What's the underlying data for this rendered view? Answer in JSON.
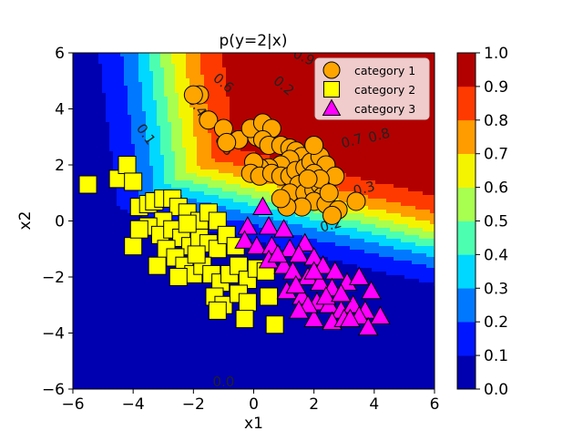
{
  "chart_data": {
    "type": "contour+scatter",
    "title": "p(y=2|x)",
    "xlabel": "x1",
    "ylabel": "x2",
    "xlim": [
      -6,
      6
    ],
    "ylim": [
      -6,
      6
    ],
    "xticks": [
      "−6",
      "−4",
      "−2",
      "0",
      "2",
      "4",
      "6"
    ],
    "yticks": [
      "−6",
      "−4",
      "−2",
      "0",
      "2",
      "4",
      "6"
    ],
    "colorbar": {
      "min": 0.0,
      "max": 1.0,
      "ticks": [
        "0.0",
        "0.1",
        "0.2",
        "0.3",
        "0.4",
        "0.5",
        "0.6",
        "0.7",
        "0.8",
        "0.9",
        "1.0"
      ],
      "level_colors": [
        "#0000b0",
        "#0016ff",
        "#0078ff",
        "#00d8ff",
        "#4cffb0",
        "#a8ff50",
        "#f4f400",
        "#ff9c00",
        "#ff3a00",
        "#b20000"
      ]
    },
    "contour_labels": [
      {
        "text": "0.1",
        "x": -3.7,
        "y": 3.0,
        "rotation": 55
      },
      {
        "text": "0.4",
        "x": -2.0,
        "y": 4.0,
        "rotation": 55
      },
      {
        "text": "0.5",
        "x": -1.1,
        "y": 2.6,
        "rotation": 55
      },
      {
        "text": "0.6",
        "x": -1.1,
        "y": 4.8,
        "rotation": 40
      },
      {
        "text": "0.2",
        "x": 0.9,
        "y": 4.7,
        "rotation": 40
      },
      {
        "text": "0.9",
        "x": 1.6,
        "y": 5.7,
        "rotation": 25
      },
      {
        "text": "0.7",
        "x": 3.3,
        "y": 2.7,
        "rotation": -15
      },
      {
        "text": "0.8",
        "x": 4.2,
        "y": 2.9,
        "rotation": -15
      },
      {
        "text": "0.3",
        "x": 3.7,
        "y": 1.0,
        "rotation": -15
      },
      {
        "text": "0.2",
        "x": 2.6,
        "y": -0.3,
        "rotation": -15
      },
      {
        "text": "0.0",
        "x": -1.0,
        "y": -5.9,
        "rotation": 0
      }
    ],
    "legend": {
      "placement": "top-right",
      "entries": [
        "category 1",
        "category 2",
        "category 3"
      ]
    },
    "series": [
      {
        "name": "category 1",
        "marker": "circle",
        "color": "#ffa500",
        "points": [
          [
            -1.8,
            4.5
          ],
          [
            -2.0,
            4.5
          ],
          [
            -1.5,
            3.6
          ],
          [
            -1.0,
            3.3
          ],
          [
            -0.5,
            2.9
          ],
          [
            -0.9,
            2.8
          ],
          [
            0.1,
            3.0
          ],
          [
            -0.1,
            3.3
          ],
          [
            0.3,
            3.5
          ],
          [
            0.6,
            3.3
          ],
          [
            0.3,
            2.9
          ],
          [
            0.5,
            2.7
          ],
          [
            0.9,
            2.7
          ],
          [
            1.2,
            2.6
          ],
          [
            1.4,
            2.5
          ],
          [
            1.6,
            2.3
          ],
          [
            1.2,
            2.2
          ],
          [
            0.9,
            2.0
          ],
          [
            0.5,
            1.9
          ],
          [
            0.2,
            1.9
          ],
          [
            0.0,
            2.1
          ],
          [
            -0.1,
            1.7
          ],
          [
            0.2,
            1.6
          ],
          [
            0.6,
            1.7
          ],
          [
            0.9,
            1.6
          ],
          [
            1.2,
            1.6
          ],
          [
            1.4,
            1.8
          ],
          [
            1.7,
            1.9
          ],
          [
            1.9,
            2.1
          ],
          [
            2.2,
            2.3
          ],
          [
            2.4,
            2.0
          ],
          [
            2.7,
            1.6
          ],
          [
            2.0,
            1.7
          ],
          [
            1.5,
            1.3
          ],
          [
            1.2,
            1.0
          ],
          [
            1.7,
            1.0
          ],
          [
            2.0,
            1.1
          ],
          [
            2.2,
            1.3
          ],
          [
            2.3,
            0.9
          ],
          [
            2.0,
            0.7
          ],
          [
            1.6,
            0.5
          ],
          [
            1.1,
            0.5
          ],
          [
            0.9,
            0.8
          ],
          [
            2.4,
            0.6
          ],
          [
            2.8,
            0.4
          ],
          [
            2.6,
            0.2
          ],
          [
            3.4,
            0.7
          ],
          [
            2.0,
            2.7
          ],
          [
            2.2,
            1.5
          ],
          [
            1.8,
            1.5
          ],
          [
            2.5,
            1.0
          ]
        ]
      },
      {
        "name": "category 2",
        "marker": "square",
        "color": "#ffff00",
        "points": [
          [
            -5.5,
            1.3
          ],
          [
            -4.5,
            1.5
          ],
          [
            -4.2,
            2.0
          ],
          [
            -4.0,
            1.4
          ],
          [
            -3.8,
            0.5
          ],
          [
            -3.5,
            0.6
          ],
          [
            -3.3,
            0.7
          ],
          [
            -3.0,
            0.8
          ],
          [
            -2.7,
            0.8
          ],
          [
            -2.5,
            0.5
          ],
          [
            -2.2,
            0.3
          ],
          [
            -1.8,
            0.0
          ],
          [
            -1.5,
            0.3
          ],
          [
            -1.2,
            0.0
          ],
          [
            -3.0,
            0.0
          ],
          [
            -3.5,
            -0.2
          ],
          [
            -3.1,
            -0.5
          ],
          [
            -2.7,
            -0.3
          ],
          [
            -2.4,
            -0.6
          ],
          [
            -2.1,
            -0.9
          ],
          [
            -1.8,
            -0.6
          ],
          [
            -1.5,
            -0.8
          ],
          [
            -1.2,
            -1.0
          ],
          [
            -0.9,
            -0.5
          ],
          [
            -0.6,
            -0.9
          ],
          [
            -2.9,
            -1.0
          ],
          [
            -2.6,
            -1.3
          ],
          [
            -2.3,
            -1.6
          ],
          [
            -2.0,
            -1.9
          ],
          [
            -1.7,
            -1.6
          ],
          [
            -1.4,
            -1.9
          ],
          [
            -1.1,
            -2.2
          ],
          [
            -0.8,
            -1.9
          ],
          [
            -0.5,
            -1.6
          ],
          [
            -0.2,
            -2.1
          ],
          [
            0.1,
            -1.7
          ],
          [
            0.4,
            -1.8
          ],
          [
            -3.2,
            -1.6
          ],
          [
            -2.5,
            -2.0
          ],
          [
            -1.3,
            -2.7
          ],
          [
            -1.0,
            -3.0
          ],
          [
            -1.2,
            -3.2
          ],
          [
            -0.5,
            -2.6
          ],
          [
            -0.2,
            -2.9
          ],
          [
            -0.3,
            -3.5
          ],
          [
            0.5,
            -2.7
          ],
          [
            0.7,
            -3.7
          ],
          [
            -4.0,
            -0.9
          ],
          [
            -3.8,
            -0.3
          ],
          [
            -2.2,
            -0.1
          ],
          [
            -1.9,
            -1.2
          ]
        ]
      },
      {
        "name": "category 3",
        "marker": "triangle",
        "color": "#ff00ff",
        "points": [
          [
            0.3,
            0.5
          ],
          [
            -0.2,
            -0.2
          ],
          [
            0.5,
            -0.2
          ],
          [
            1.0,
            -0.3
          ],
          [
            -0.3,
            -0.7
          ],
          [
            0.1,
            -0.9
          ],
          [
            0.6,
            -0.9
          ],
          [
            1.2,
            -1.0
          ],
          [
            1.7,
            -0.8
          ],
          [
            0.5,
            -1.4
          ],
          [
            1.0,
            -1.6
          ],
          [
            1.5,
            -1.2
          ],
          [
            2.0,
            -1.3
          ],
          [
            2.3,
            -1.6
          ],
          [
            2.7,
            -1.8
          ],
          [
            1.3,
            -1.8
          ],
          [
            1.8,
            -2.0
          ],
          [
            2.2,
            -2.2
          ],
          [
            2.6,
            -2.4
          ],
          [
            3.1,
            -2.2
          ],
          [
            3.5,
            -2.0
          ],
          [
            3.9,
            -2.5
          ],
          [
            1.1,
            -2.5
          ],
          [
            1.6,
            -2.7
          ],
          [
            2.1,
            -2.9
          ],
          [
            2.5,
            -3.0
          ],
          [
            2.9,
            -3.2
          ],
          [
            3.3,
            -3.0
          ],
          [
            3.7,
            -3.2
          ],
          [
            2.0,
            -3.5
          ],
          [
            2.6,
            -3.6
          ],
          [
            3.0,
            -3.5
          ],
          [
            3.5,
            -3.4
          ],
          [
            4.2,
            -3.4
          ],
          [
            3.8,
            -3.8
          ],
          [
            1.8,
            -3.0
          ],
          [
            2.4,
            -2.7
          ],
          [
            1.4,
            -2.3
          ],
          [
            2.9,
            -2.6
          ],
          [
            2.0,
            -1.8
          ],
          [
            3.2,
            -3.5
          ],
          [
            1.5,
            -3.2
          ],
          [
            0.8,
            -1.2
          ]
        ]
      }
    ]
  }
}
